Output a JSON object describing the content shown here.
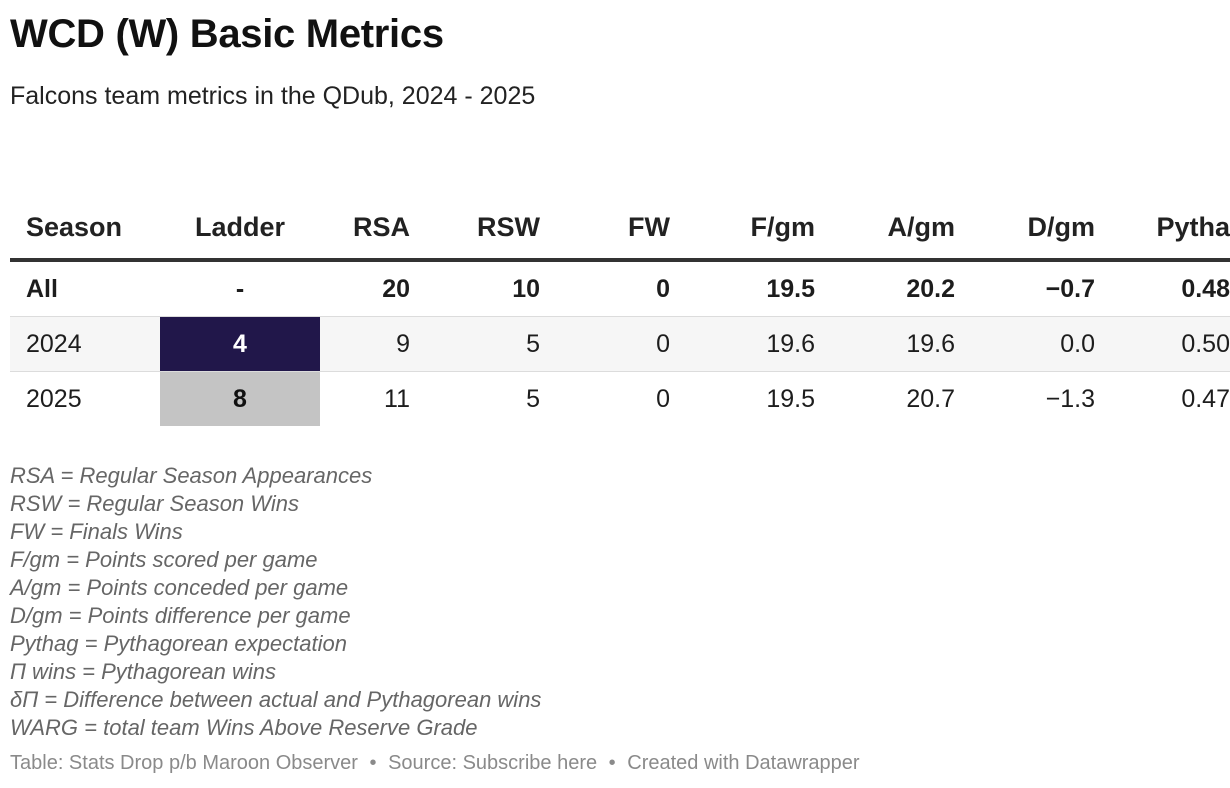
{
  "title": "WCD (W) Basic Metrics",
  "subtitle": "Falcons team metrics in the QDub, 2024 - 2025",
  "table": {
    "headers": [
      "Season",
      "Ladder",
      "RSA",
      "RSW",
      "FW",
      "F/gm",
      "A/gm",
      "D/gm",
      "Pytha"
    ],
    "rows": [
      {
        "season": "All",
        "ladder": "-",
        "rsa": "20",
        "rsw": "10",
        "fw": "0",
        "fgm": "19.5",
        "agm": "20.2",
        "dgm": "−0.7",
        "pyth": "0.48"
      },
      {
        "season": "2024",
        "ladder": "4",
        "rsa": "9",
        "rsw": "5",
        "fw": "0",
        "fgm": "19.6",
        "agm": "19.6",
        "dgm": "0.0",
        "pyth": "0.50"
      },
      {
        "season": "2025",
        "ladder": "8",
        "rsa": "11",
        "rsw": "5",
        "fw": "0",
        "fgm": "19.5",
        "agm": "20.7",
        "dgm": "−1.3",
        "pyth": "0.47"
      }
    ],
    "ladder_colors": {
      "2024": {
        "bg": "#21174a",
        "fg": "#ffffff"
      },
      "2025": {
        "bg": "#c4c4c4",
        "fg": "#111111"
      }
    }
  },
  "notes": [
    "RSA = Regular Season Appearances",
    "RSW = Regular Season Wins",
    "FW = Finals Wins",
    "F/gm = Points scored per game",
    "A/gm = Points conceded per game",
    "D/gm = Points difference per game",
    "Pythag = Pythagorean expectation",
    "Π wins = Pythagorean wins",
    "δΠ = Difference between actual and Pythagorean wins",
    "WARG = total team Wins Above Reserve Grade"
  ],
  "footer": {
    "table_credit": "Table: Stats Drop p/b Maroon Observer",
    "separator": "•",
    "source": "Source: Subscribe here",
    "created": "Created with Datawrapper"
  }
}
